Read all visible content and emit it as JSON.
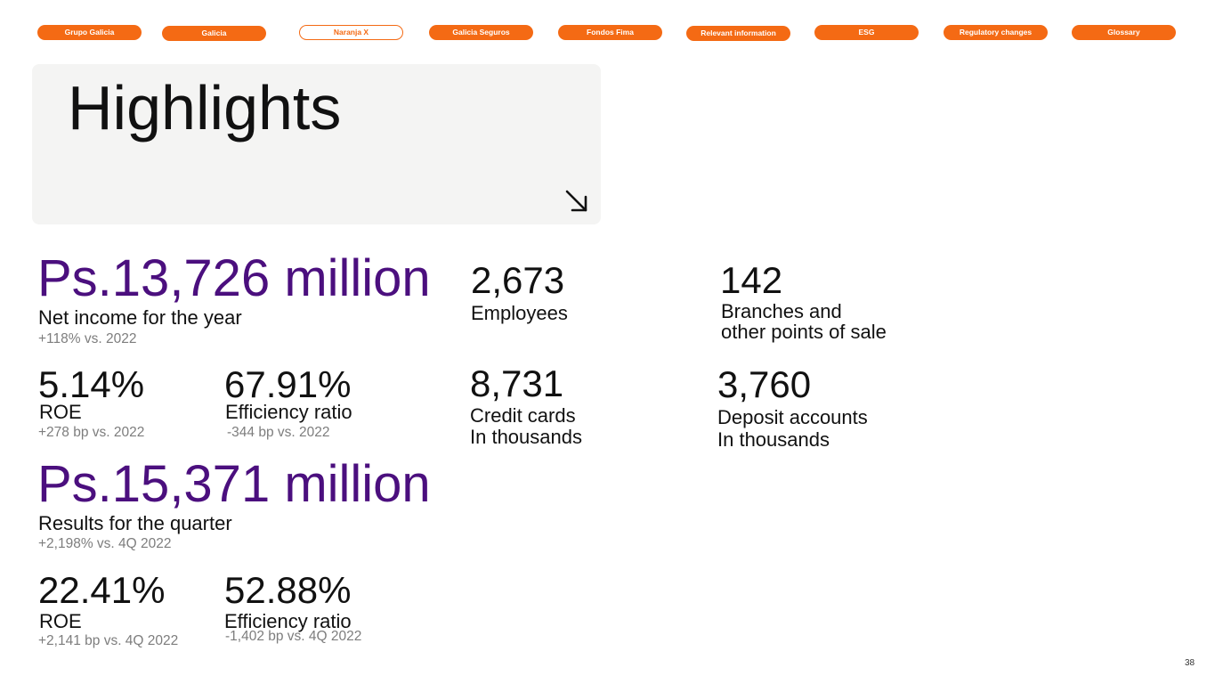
{
  "nav": {
    "items": [
      {
        "label": "Grupo Galicia"
      },
      {
        "label": "Galicia"
      },
      {
        "label": "Naranja X"
      },
      {
        "label": "Galicia Seguros"
      },
      {
        "label": "Fondos Fima"
      },
      {
        "label": "Relevant information"
      },
      {
        "label": "ESG"
      },
      {
        "label": "Regulatory changes"
      },
      {
        "label": "Glossary"
      }
    ],
    "active": "Naranja X"
  },
  "hero": {
    "title": "Highlights",
    "icon": "arrow-down-right-icon"
  },
  "annual": {
    "net_income": {
      "value": "Ps.13,726 million",
      "label": "Net income for the year",
      "change": "+118% vs. 2022"
    },
    "roe": {
      "value": "5.14%",
      "label": "ROE",
      "change": "+278 bp vs. 2022"
    },
    "efficiency": {
      "value": "67.91%",
      "label": "Efficiency ratio",
      "change": "-344 bp vs. 2022"
    }
  },
  "quarter": {
    "results": {
      "value": "Ps.15,371 million",
      "label": "Results for the quarter",
      "change": "+2,198% vs. 4Q 2022"
    },
    "roe": {
      "value": "22.41%",
      "label": "ROE",
      "change": "+2,141 bp vs. 4Q 2022"
    },
    "efficiency": {
      "value": "52.88%",
      "label": "Efficiency ratio",
      "change": "-1,402 bp vs. 4Q 2022"
    }
  },
  "stats": {
    "employees": {
      "value": "2,673",
      "label": "Employees"
    },
    "branches": {
      "value": "142",
      "label_line1": "Branches and",
      "label_line2": "other points of sale"
    },
    "credit_cards": {
      "value": "8,731",
      "label_line1": "Credit cards",
      "label_line2": "In thousands"
    },
    "deposit_accounts": {
      "value": "3,760",
      "label_line1": "Deposit accounts",
      "label_line2": "In thousands"
    }
  },
  "colors": {
    "accent": "#f46a14",
    "purple": "#4b0f7e",
    "panel": "#f4f4f3",
    "muted": "#7d7d7d"
  },
  "page_number": "38"
}
